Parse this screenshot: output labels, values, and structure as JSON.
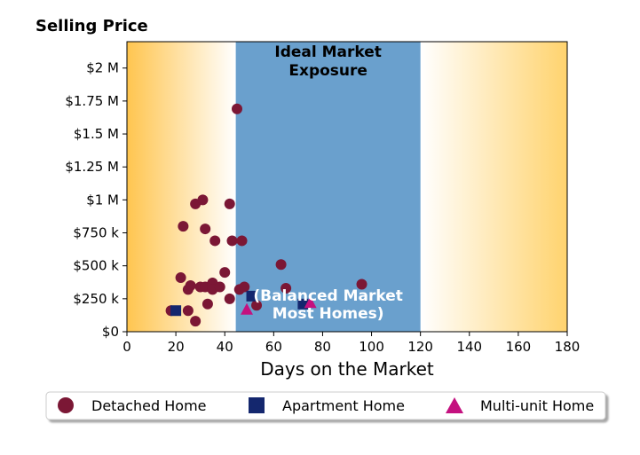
{
  "chart_data": {
    "type": "scatter",
    "title": "Selling Price",
    "xlabel": "Days on the Market",
    "ylabel": "",
    "xlim": [
      0,
      180
    ],
    "ylim": [
      0,
      2200000
    ],
    "xticks": [
      0,
      20,
      40,
      60,
      80,
      100,
      120,
      140,
      160,
      180
    ],
    "xtick_labels": [
      "0",
      "20",
      "40",
      "60",
      "80",
      "100",
      "120",
      "140",
      "160",
      "180"
    ],
    "yticks": [
      0,
      250000,
      500000,
      750000,
      1000000,
      1250000,
      1500000,
      1750000,
      2000000
    ],
    "ytick_labels": [
      "$0",
      "$250 k",
      "$500 k",
      "$750 k",
      "$1 M",
      "$1.25 M",
      "$1.5 M",
      "$1.75 M",
      "$2 M"
    ],
    "grid": false,
    "legend_position": "bottom",
    "bands": [
      {
        "x_start": 44.5,
        "x_end": 120,
        "label_lines": [
          "Ideal Market",
          "Exposure"
        ],
        "color": "#6aa0cd"
      },
      {
        "x_start": 44.5,
        "x_end": 120,
        "label_lines": [
          "(Balanced Market",
          "Most Homes)"
        ],
        "color": "#6aa0cd"
      }
    ],
    "series": [
      {
        "name": "Detached Home",
        "marker": "circle",
        "color": "#7b1735",
        "points": [
          [
            18,
            160000
          ],
          [
            22,
            410000
          ],
          [
            23,
            800000
          ],
          [
            25,
            320000
          ],
          [
            25,
            160000
          ],
          [
            26,
            350000
          ],
          [
            28,
            970000
          ],
          [
            28,
            80000
          ],
          [
            30,
            340000
          ],
          [
            31,
            1000000
          ],
          [
            32,
            780000
          ],
          [
            32,
            340000
          ],
          [
            33,
            210000
          ],
          [
            35,
            370000
          ],
          [
            35,
            320000
          ],
          [
            36,
            690000
          ],
          [
            38,
            340000
          ],
          [
            40,
            450000
          ],
          [
            42,
            970000
          ],
          [
            42,
            250000
          ],
          [
            43,
            690000
          ],
          [
            45,
            1690000
          ],
          [
            46,
            320000
          ],
          [
            47,
            690000
          ],
          [
            48,
            340000
          ],
          [
            53,
            200000
          ],
          [
            63,
            510000
          ],
          [
            65,
            330000
          ],
          [
            96,
            360000
          ]
        ]
      },
      {
        "name": "Apartment Home",
        "marker": "square",
        "color": "#14276e",
        "points": [
          [
            20,
            160000
          ],
          [
            51,
            270000
          ],
          [
            72,
            210000
          ]
        ]
      },
      {
        "name": "Multi-unit Home",
        "marker": "triangle",
        "color": "#c4117f",
        "points": [
          [
            49,
            170000
          ],
          [
            75,
            220000
          ]
        ]
      }
    ]
  }
}
